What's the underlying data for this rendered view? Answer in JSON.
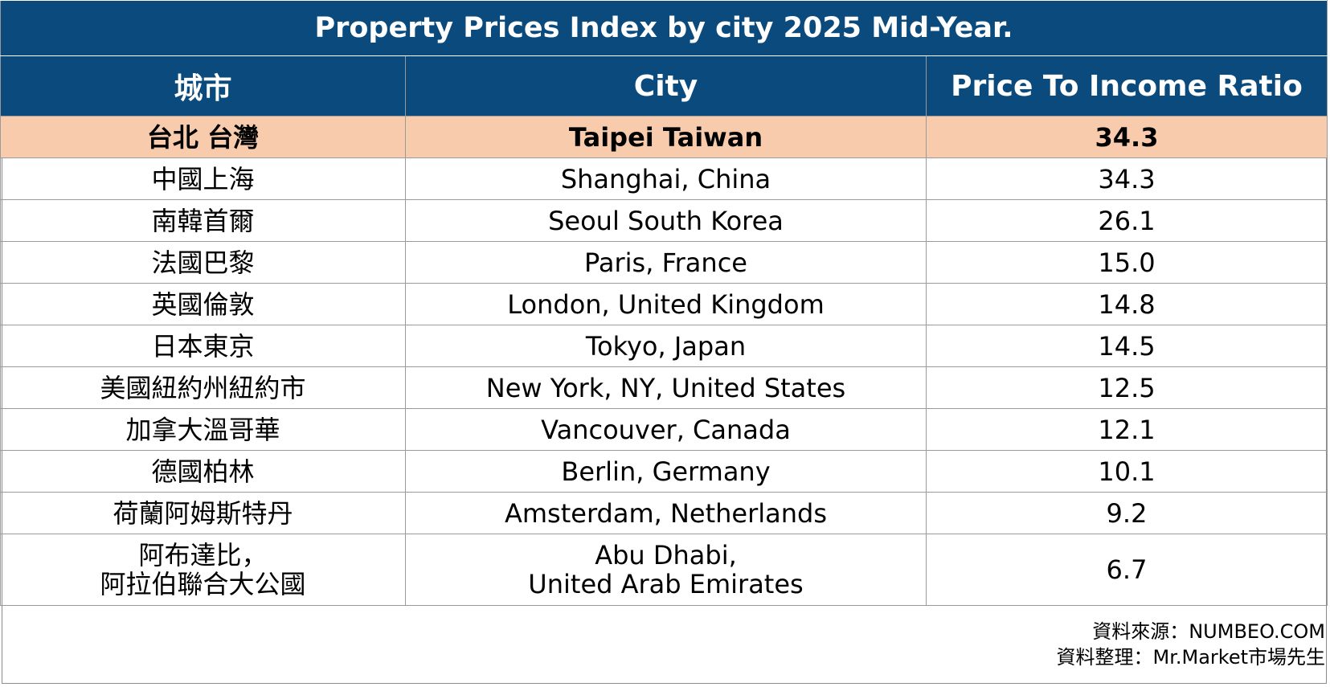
{
  "title": "Property Prices Index  by city 2025 Mid-Year.",
  "columns": {
    "zh": "城市",
    "city": "City",
    "ratio": "Price To Income Ratio"
  },
  "rows": [
    {
      "zh": "台北 台灣",
      "city": "Taipei Taiwan",
      "ratio": "34.3"
    },
    {
      "zh": "中國上海",
      "city": "Shanghai, China",
      "ratio": "34.3"
    },
    {
      "zh": "南韓首爾",
      "city": "Seoul South Korea",
      "ratio": "26.1"
    },
    {
      "zh": "法國巴黎",
      "city": "Paris, France",
      "ratio": "15.0"
    },
    {
      "zh": "英國倫敦",
      "city": "London, United Kingdom",
      "ratio": "14.8"
    },
    {
      "zh": "日本東京",
      "city": "Tokyo, Japan",
      "ratio": "14.5"
    },
    {
      "zh": "美國紐約州紐約市",
      "city": "New York, NY, United States",
      "ratio": "12.5"
    },
    {
      "zh": "加拿大溫哥華",
      "city": "Vancouver, Canada",
      "ratio": "12.1"
    },
    {
      "zh": "德國柏林",
      "city": "Berlin, Germany",
      "ratio": "10.1"
    },
    {
      "zh": "荷蘭阿姆斯特丹",
      "city": "Amsterdam, Netherlands",
      "ratio": "9.2"
    },
    {
      "zh_line1": "阿布達比，",
      "zh_line2": "阿拉伯聯合大公國",
      "city_line1": "Abu Dhabi,",
      "city_line2": "United Arab Emirates",
      "ratio": "6.7"
    }
  ],
  "source": {
    "line1": "資料來源：NUMBEO.COM",
    "line2": "資料整理：Mr.Market市場先生"
  },
  "colors": {
    "header_bg": "#0b4a7c",
    "header_text": "#ffffff",
    "highlight_bg": "#f8cbad",
    "border": "#9a9a9a"
  }
}
